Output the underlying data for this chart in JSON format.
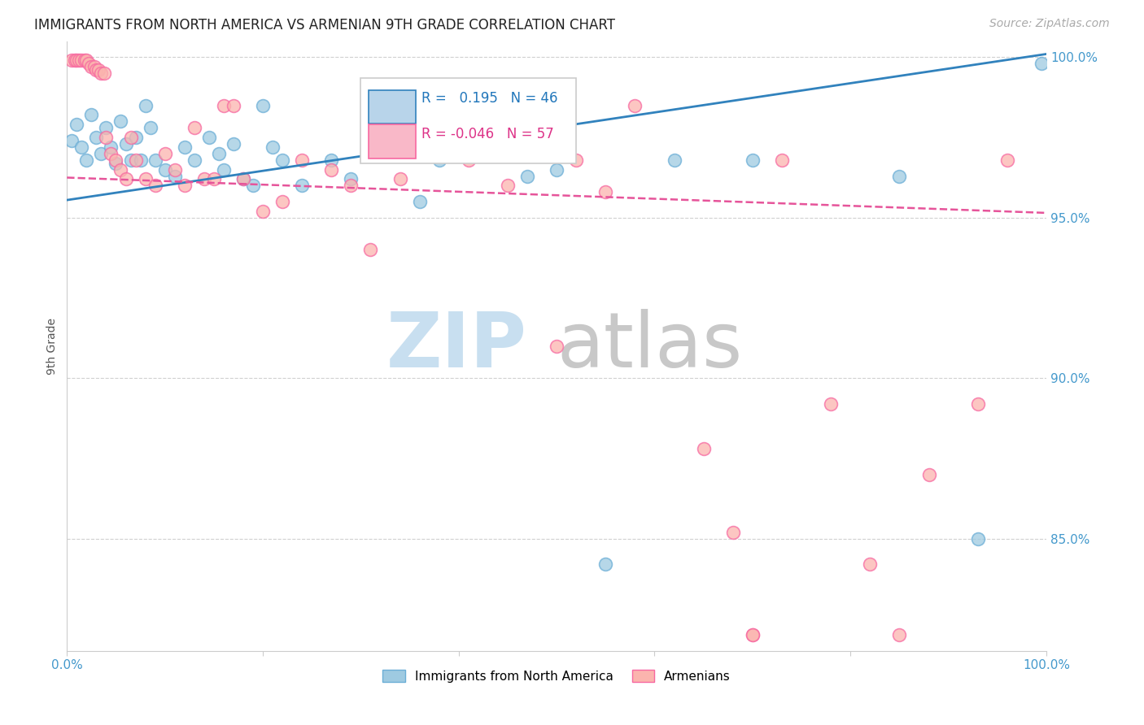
{
  "title": "IMMIGRANTS FROM NORTH AMERICA VS ARMENIAN 9TH GRADE CORRELATION CHART",
  "source": "Source: ZipAtlas.com",
  "ylabel": "9th Grade",
  "blue_R": 0.195,
  "blue_N": 46,
  "pink_R": -0.046,
  "pink_N": 57,
  "xlim": [
    0.0,
    1.0
  ],
  "ylim": [
    0.815,
    1.005
  ],
  "x_ticks": [
    0.0,
    0.2,
    0.4,
    0.6,
    0.8,
    1.0
  ],
  "x_tick_labels": [
    "0.0%",
    "",
    "",
    "",
    "",
    "100.0%"
  ],
  "y_ticks": [
    0.85,
    0.9,
    0.95,
    1.0
  ],
  "y_tick_labels": [
    "85.0%",
    "90.0%",
    "95.0%",
    "100.0%"
  ],
  "blue_line_x": [
    0.0,
    1.0
  ],
  "blue_line_y": [
    0.9555,
    1.001
  ],
  "pink_line_x": [
    0.0,
    1.0
  ],
  "pink_line_y": [
    0.9625,
    0.9515
  ],
  "blue_scatter_x": [
    0.005,
    0.01,
    0.015,
    0.02,
    0.025,
    0.03,
    0.035,
    0.04,
    0.045,
    0.05,
    0.055,
    0.06,
    0.065,
    0.07,
    0.075,
    0.08,
    0.085,
    0.09,
    0.1,
    0.11,
    0.12,
    0.13,
    0.145,
    0.155,
    0.16,
    0.17,
    0.18,
    0.19,
    0.2,
    0.21,
    0.22,
    0.24,
    0.27,
    0.29,
    0.32,
    0.36,
    0.38,
    0.42,
    0.47,
    0.5,
    0.55,
    0.62,
    0.7,
    0.85,
    0.93,
    0.995
  ],
  "blue_scatter_y": [
    0.974,
    0.979,
    0.972,
    0.968,
    0.982,
    0.975,
    0.97,
    0.978,
    0.972,
    0.967,
    0.98,
    0.973,
    0.968,
    0.975,
    0.968,
    0.985,
    0.978,
    0.968,
    0.965,
    0.963,
    0.972,
    0.968,
    0.975,
    0.97,
    0.965,
    0.973,
    0.962,
    0.96,
    0.985,
    0.972,
    0.968,
    0.96,
    0.968,
    0.962,
    0.97,
    0.955,
    0.968,
    0.975,
    0.963,
    0.965,
    0.842,
    0.968,
    0.968,
    0.963,
    0.85,
    0.998
  ],
  "pink_scatter_x": [
    0.005,
    0.008,
    0.01,
    0.012,
    0.015,
    0.018,
    0.02,
    0.022,
    0.025,
    0.028,
    0.03,
    0.032,
    0.035,
    0.038,
    0.04,
    0.045,
    0.05,
    0.055,
    0.06,
    0.065,
    0.07,
    0.08,
    0.09,
    0.1,
    0.11,
    0.12,
    0.13,
    0.14,
    0.15,
    0.16,
    0.17,
    0.18,
    0.2,
    0.22,
    0.24,
    0.27,
    0.29,
    0.31,
    0.34,
    0.37,
    0.41,
    0.45,
    0.5,
    0.52,
    0.55,
    0.58,
    0.65,
    0.68,
    0.7,
    0.73,
    0.78,
    0.82,
    0.85,
    0.88,
    0.93,
    0.96,
    0.7
  ],
  "pink_scatter_y": [
    0.999,
    0.999,
    0.999,
    0.999,
    0.999,
    0.999,
    0.999,
    0.998,
    0.997,
    0.997,
    0.996,
    0.996,
    0.995,
    0.995,
    0.975,
    0.97,
    0.968,
    0.965,
    0.962,
    0.975,
    0.968,
    0.962,
    0.96,
    0.97,
    0.965,
    0.96,
    0.978,
    0.962,
    0.962,
    0.985,
    0.985,
    0.962,
    0.952,
    0.955,
    0.968,
    0.965,
    0.96,
    0.94,
    0.962,
    0.97,
    0.968,
    0.96,
    0.91,
    0.968,
    0.958,
    0.985,
    0.878,
    0.852,
    0.82,
    0.968,
    0.892,
    0.842,
    0.82,
    0.87,
    0.892,
    0.968,
    0.82
  ],
  "blue_color": "#9ecae1",
  "blue_edge_color": "#6baed6",
  "pink_color": "#fbb4ae",
  "pink_edge_color": "#f768a1",
  "blue_line_color": "#3182bd",
  "pink_line_color": "#e6549a",
  "background_color": "#ffffff",
  "grid_color": "#d0d0d0",
  "title_color": "#222222",
  "title_fontsize": 12,
  "source_color": "#aaaaaa",
  "source_fontsize": 10,
  "axis_tick_color": "#4499cc",
  "ylabel_color": "#555555",
  "watermark_zip_color": "#c8dff0",
  "watermark_atlas_color": "#c8c8c8",
  "legend_border_color": "#cccccc",
  "legend_blue_fill": "#b8d4ea",
  "legend_pink_fill": "#f9b8c8",
  "legend_text_blue": "#2277bb",
  "legend_text_pink": "#dd3388"
}
